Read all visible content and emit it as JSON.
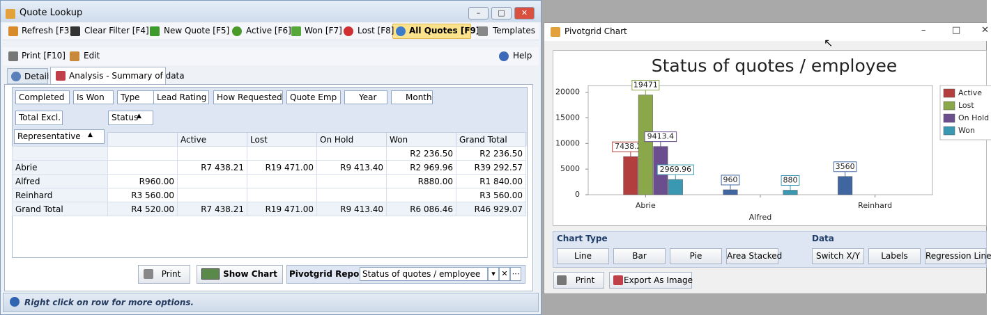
{
  "quote_lookup": {
    "title": "Quote Lookup",
    "toolbar": [
      "Refresh [F3]",
      "Clear Filter [F4]",
      "New Quote [F5]",
      "Active [F6]",
      "Won [F7]",
      "Lost [F8]",
      "All Quotes [F9]",
      "Templates"
    ],
    "toolbar2": [
      "Print [F10]",
      "Edit",
      "Help"
    ],
    "tabs": [
      "Detail",
      "Analysis - Summary of data"
    ],
    "filter_fields": [
      "Completed",
      "Is Won",
      "Type",
      "Lead Rating",
      "How Requested",
      "Quote Emp",
      "Year",
      "Month"
    ],
    "data_field": "Total Excl.",
    "column_field": "Status",
    "row_field": "Representative",
    "table": {
      "columns": [
        null,
        "Active",
        "Lost",
        "On Hold",
        "Won",
        "Grand Total"
      ],
      "rows": [
        [
          null,
          null,
          null,
          null,
          null,
          "R2 236.50",
          "R2 236.50"
        ],
        [
          "Abrie",
          null,
          "R7 438.21",
          "R19 471.00",
          "R9 413.40",
          "R2 969.96",
          "R39 292.57"
        ],
        [
          "Alfred",
          "R960.00",
          null,
          null,
          null,
          "R880.00",
          "R1 840.00"
        ],
        [
          "Reinhard",
          "R3 560.00",
          null,
          null,
          null,
          null,
          "R3 560.00"
        ],
        [
          "Grand Total",
          "R4 520.00",
          "R7 438.21",
          "R19 471.00",
          "R9 413.40",
          "R6 086.46",
          "R46 929.07"
        ]
      ]
    },
    "buttons": [
      "Print",
      "Show Chart"
    ],
    "report_label": "Pivotgrid Report:",
    "report_value": "Status of quotes / employee",
    "status": "Right click on row for more options."
  },
  "pivot_chart": {
    "title": "Pivotgrid Chart",
    "chart_type_label": "Chart Type",
    "chart_types": [
      "Line",
      "Bar",
      "Pie",
      "Area Stacked"
    ],
    "data_label": "Data",
    "data_buttons": [
      "Switch X/Y",
      "Labels",
      "Regression Line"
    ],
    "bottom_buttons": [
      "Print",
      "Export As Image"
    ]
  },
  "chart_data": {
    "type": "bar",
    "title": "Status of quotes / employee",
    "categories": [
      "Abrie",
      "Alfred",
      "Reinhard"
    ],
    "series": [
      {
        "name": null,
        "color": "#3f66a0",
        "values": [
          null,
          960,
          3560
        ]
      },
      {
        "name": "Active",
        "color": "#b23f3e",
        "values": [
          7438.21,
          null,
          null
        ]
      },
      {
        "name": "Lost",
        "color": "#8aa84a",
        "values": [
          19471,
          null,
          null
        ]
      },
      {
        "name": "On Hold",
        "color": "#6a4e8e",
        "values": [
          9413.4,
          null,
          null
        ]
      },
      {
        "name": "Won",
        "color": "#3a98b2",
        "values": [
          2969.96,
          880,
          null
        ]
      }
    ],
    "ylim": [
      0,
      21300
    ],
    "yticks": [
      0,
      5000,
      10000,
      15000,
      20000
    ],
    "grid": false,
    "legend": "right"
  }
}
